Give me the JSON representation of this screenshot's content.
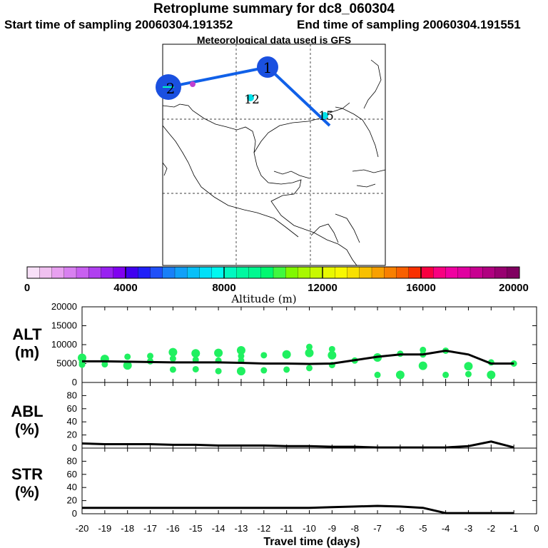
{
  "header": {
    "title": "Retroplume summary for dc8_060304",
    "start_label": "Start time of sampling 20060304.191352",
    "end_label": "End time of sampling 20060304.191551",
    "met_label": "Meteorological data used is GFS"
  },
  "map": {
    "labels": [
      "1",
      "2",
      "12",
      "15"
    ],
    "track_color": "#1060e8"
  },
  "colorbar": {
    "title": "Altitude (m)",
    "ticks": [
      "0",
      "4000",
      "8000",
      "12000",
      "16000",
      "20000"
    ],
    "colors": [
      "#f8e0f8",
      "#f0c0f0",
      "#e8a0f0",
      "#d880f0",
      "#c860f0",
      "#b040f0",
      "#9820f0",
      "#8000f0",
      "#4000f0",
      "#2020f8",
      "#2050f8",
      "#1880f8",
      "#10a0f8",
      "#08c0f8",
      "#00e0f8",
      "#00f8f0",
      "#00f8c0",
      "#00f8a0",
      "#00f890",
      "#00f870",
      "#40f840",
      "#80f800",
      "#a8f800",
      "#c8f800",
      "#e8f800",
      "#f8f800",
      "#f8e000",
      "#f8c000",
      "#f8a000",
      "#f88000",
      "#f86000",
      "#f83000",
      "#f80040",
      "#f80080",
      "#f000a0",
      "#e000a0",
      "#c80090",
      "#b00080",
      "#980070",
      "#800060"
    ]
  },
  "chart_data": [
    {
      "type": "scatter",
      "panel": "ALT",
      "ylabel_lines": [
        "ALT",
        "(m)"
      ],
      "ylim": [
        0,
        20000
      ],
      "yticks": [
        "0",
        "5000",
        "10000",
        "15000",
        "20000"
      ],
      "xlim": [
        -20,
        0
      ],
      "marker_color": "#20f060",
      "mean_line": {
        "x": [
          -20,
          -19,
          -18,
          -17,
          -16,
          -15,
          -14,
          -13,
          -12,
          -11,
          -10,
          -9,
          -8,
          -7,
          -6,
          -5,
          -4,
          -3,
          -2,
          -1
        ],
        "y": [
          5600,
          5600,
          5500,
          5400,
          5300,
          5300,
          5300,
          5200,
          5000,
          5000,
          4900,
          5000,
          5900,
          6800,
          7400,
          7400,
          8400,
          7400,
          5000,
          5000
        ]
      },
      "markers": [
        {
          "x": -20,
          "y": 6500
        },
        {
          "x": -20,
          "y": 5300
        },
        {
          "x": -20,
          "y": 4700
        },
        {
          "x": -19,
          "y": 6200
        },
        {
          "x": -19,
          "y": 4800
        },
        {
          "x": -18,
          "y": 6800
        },
        {
          "x": -18,
          "y": 4500
        },
        {
          "x": -17,
          "y": 7000
        },
        {
          "x": -17,
          "y": 5600
        },
        {
          "x": -16,
          "y": 8000
        },
        {
          "x": -16,
          "y": 6300
        },
        {
          "x": -16,
          "y": 3400
        },
        {
          "x": -15,
          "y": 7700
        },
        {
          "x": -15,
          "y": 6000
        },
        {
          "x": -15,
          "y": 3500
        },
        {
          "x": -14,
          "y": 7800
        },
        {
          "x": -14,
          "y": 5800
        },
        {
          "x": -14,
          "y": 3000
        },
        {
          "x": -13,
          "y": 8500
        },
        {
          "x": -13,
          "y": 7000
        },
        {
          "x": -13,
          "y": 5800
        },
        {
          "x": -13,
          "y": 3000
        },
        {
          "x": -12,
          "y": 7200
        },
        {
          "x": -12,
          "y": 3200
        },
        {
          "x": -11,
          "y": 7400
        },
        {
          "x": -11,
          "y": 3400
        },
        {
          "x": -10,
          "y": 9400
        },
        {
          "x": -10,
          "y": 7800
        },
        {
          "x": -10,
          "y": 3800
        },
        {
          "x": -9,
          "y": 8800
        },
        {
          "x": -9,
          "y": 7200
        },
        {
          "x": -9,
          "y": 4600
        },
        {
          "x": -8,
          "y": 5800
        },
        {
          "x": -7,
          "y": 6600
        },
        {
          "x": -7,
          "y": 2000
        },
        {
          "x": -6,
          "y": 7600
        },
        {
          "x": -6,
          "y": 2000
        },
        {
          "x": -5,
          "y": 8600
        },
        {
          "x": -5,
          "y": 7400
        },
        {
          "x": -5,
          "y": 4400
        },
        {
          "x": -4,
          "y": 8400
        },
        {
          "x": -4,
          "y": 2000
        },
        {
          "x": -3,
          "y": 4300
        },
        {
          "x": -3,
          "y": 2200
        },
        {
          "x": -2,
          "y": 5300
        },
        {
          "x": -2,
          "y": 2000
        },
        {
          "x": -1,
          "y": 5000
        }
      ]
    },
    {
      "type": "line",
      "panel": "ABL",
      "ylabel_lines": [
        "ABL",
        "(%)"
      ],
      "ylim": [
        0,
        100
      ],
      "yticks": [
        "0",
        "20",
        "40",
        "60",
        "80"
      ],
      "xlim": [
        -20,
        0
      ],
      "x": [
        -20,
        -19,
        -18,
        -17,
        -16,
        -15,
        -14,
        -13,
        -12,
        -11,
        -10,
        -9,
        -8,
        -7,
        -6,
        -5,
        -4,
        -3,
        -2,
        -1
      ],
      "y": [
        7,
        6,
        6,
        6,
        5,
        5,
        4,
        4,
        4,
        3,
        3,
        2,
        2,
        1,
        1,
        1,
        1,
        3,
        10,
        1
      ]
    },
    {
      "type": "line",
      "panel": "STR",
      "ylabel_lines": [
        "STR",
        "(%)"
      ],
      "ylim": [
        0,
        100
      ],
      "yticks": [
        "0",
        "20",
        "40",
        "60",
        "80"
      ],
      "xlim": [
        -20,
        0
      ],
      "xticks": [
        "-20",
        "-19",
        "-18",
        "-17",
        "-16",
        "-15",
        "-14",
        "-13",
        "-12",
        "-11",
        "-10",
        "-9",
        "-8",
        "-7",
        "-6",
        "-5",
        "-4",
        "-3",
        "-2",
        "-1",
        "0"
      ],
      "xlabel": "Travel time (days)",
      "x": [
        -20,
        -19,
        -18,
        -17,
        -16,
        -15,
        -14,
        -13,
        -12,
        -11,
        -10,
        -9,
        -8,
        -7,
        -6,
        -5,
        -4,
        -3,
        -2,
        -1
      ],
      "y": [
        9,
        9,
        9,
        9,
        9,
        9,
        9,
        9,
        9,
        9,
        9,
        10,
        11,
        12,
        11,
        9,
        1,
        1,
        1,
        1
      ]
    }
  ]
}
